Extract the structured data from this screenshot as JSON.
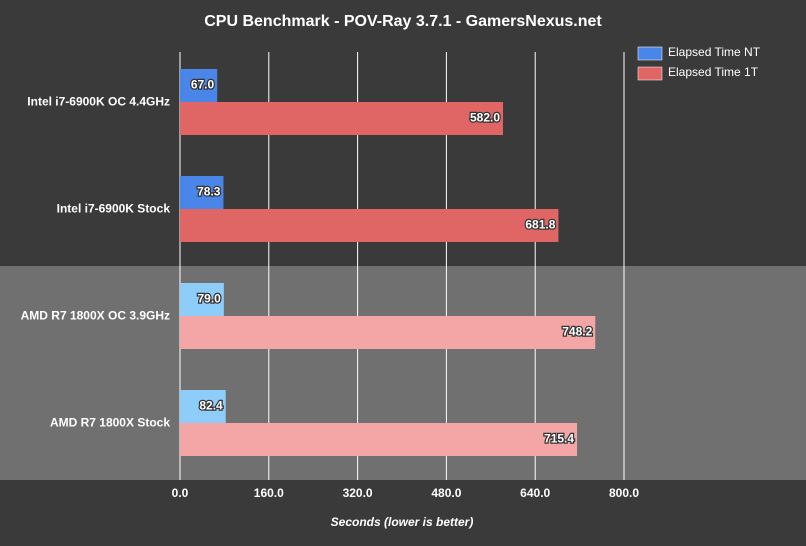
{
  "chart_data": {
    "type": "hbar",
    "title": "CPU Benchmark - POV-Ray 3.7.1 - GamersNexus.net",
    "xlabel": "Seconds (lower is better)",
    "categories": [
      "Intel i7-6900K OC 4.4GHz",
      "Intel i7-6900K Stock",
      "AMD R7 1800X OC 3.9GHz",
      "AMD R7 1800X Stock"
    ],
    "band_colors": [
      "#3a3a3a",
      "#3a3a3a",
      "#707070",
      "#707070"
    ],
    "series": [
      {
        "name": "Elapsed Time NT",
        "color": "#4a86e8",
        "bar_colors": [
          "#4a86e8",
          "#4a86e8",
          "#8ecdf9",
          "#8ecdf9"
        ],
        "values": [
          67.0,
          78.3,
          79.0,
          82.4
        ],
        "value_labels": [
          "67.0",
          "78.3",
          "79.0",
          "82.4"
        ]
      },
      {
        "name": "Elapsed Time 1T",
        "color": "#e06666",
        "bar_colors": [
          "#e06666",
          "#e06666",
          "#f4a6a6",
          "#f4a6a6"
        ],
        "values": [
          582.0,
          681.8,
          748.2,
          715.4
        ],
        "value_labels": [
          "582.0",
          "681.8",
          "748.2",
          "715.4"
        ]
      }
    ],
    "xlim": [
      0,
      800
    ],
    "xticks": [
      {
        "value": 0,
        "label": "0.0"
      },
      {
        "value": 160,
        "label": "160.0"
      },
      {
        "value": 320,
        "label": "320.0"
      },
      {
        "value": 480,
        "label": "480.0"
      },
      {
        "value": 640,
        "label": "640.0"
      },
      {
        "value": 800,
        "label": "800.0"
      }
    ],
    "grid": true
  }
}
